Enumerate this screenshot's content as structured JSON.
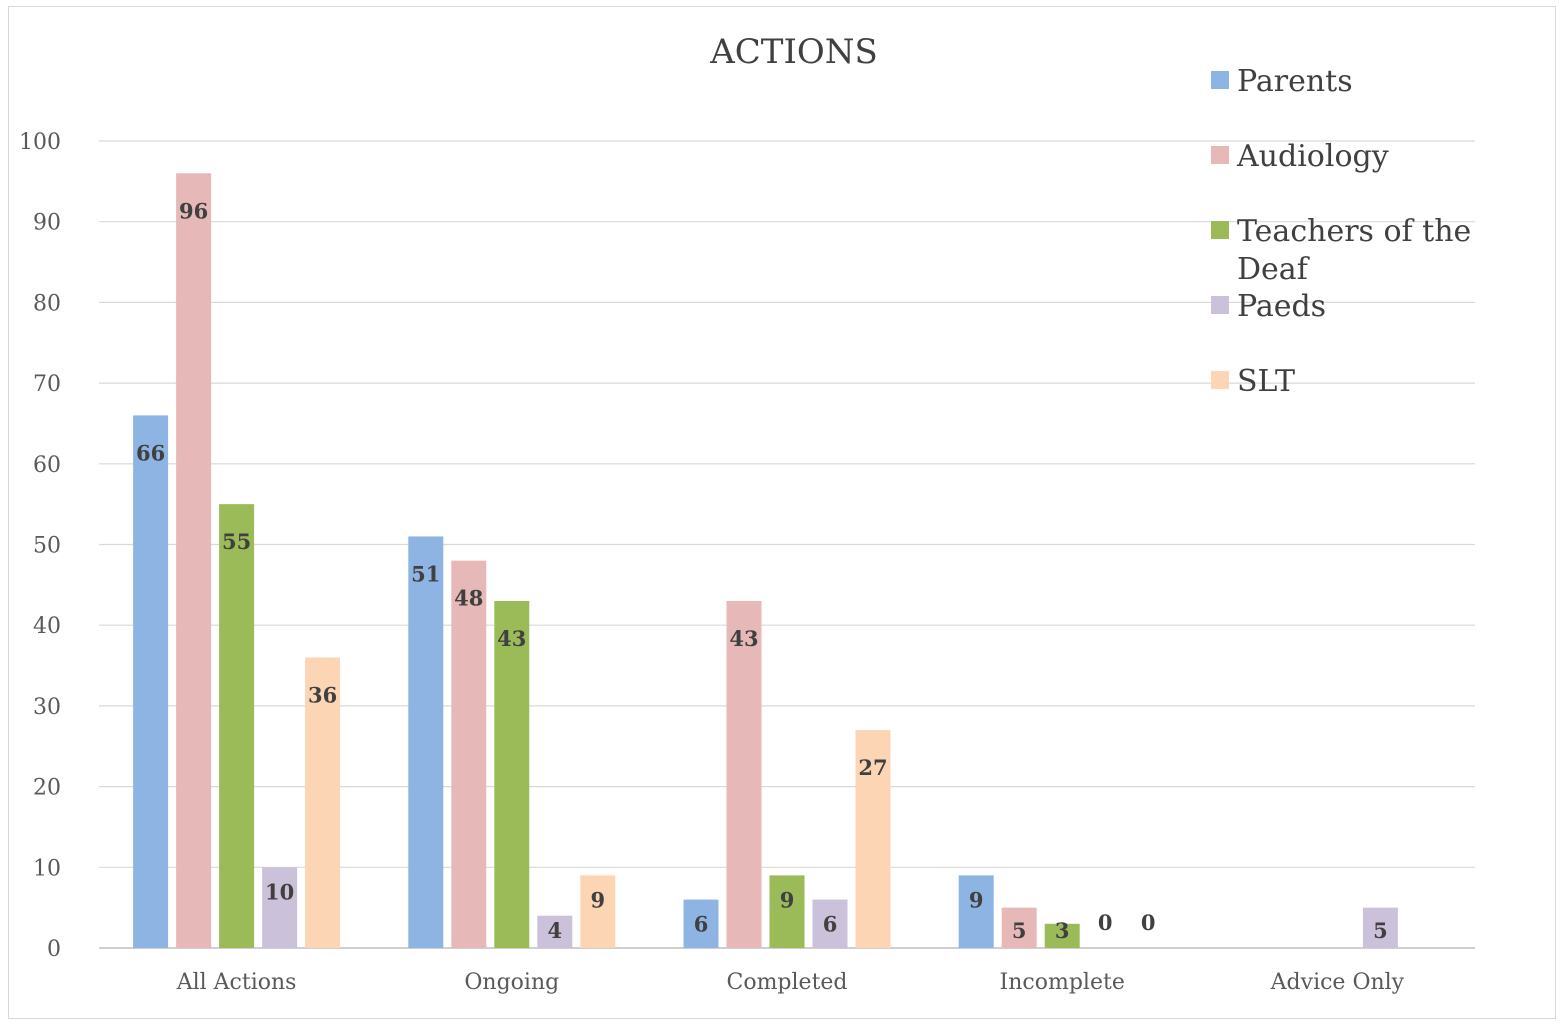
{
  "chart_data": {
    "type": "bar",
    "title": "ACTIONS",
    "xlabel": "",
    "ylabel": "",
    "ylim": [
      0,
      100
    ],
    "yticks": [
      0,
      10,
      20,
      30,
      40,
      50,
      60,
      70,
      80,
      90,
      100
    ],
    "grid": true,
    "legend_position": "right",
    "categories": [
      "All Actions",
      "Ongoing",
      "Completed",
      "Incomplete",
      "Advice Only"
    ],
    "series": [
      {
        "name": "Parents",
        "color": "#8eb4e3",
        "values": [
          66,
          51,
          6,
          9,
          null
        ],
        "labels": [
          "66",
          "51",
          "6",
          "9",
          ""
        ]
      },
      {
        "name": "Audiology",
        "color": "#e6b9b8",
        "values": [
          96,
          48,
          43,
          5,
          null
        ],
        "labels": [
          "96",
          "48",
          "43",
          "5",
          ""
        ]
      },
      {
        "name": "Teachers of the Deaf",
        "legend_lines": [
          "Teachers of the",
          "Deaf"
        ],
        "color": "#9bbb59",
        "values": [
          55,
          43,
          9,
          3,
          null
        ],
        "labels": [
          "55",
          "43",
          "9",
          "3",
          ""
        ]
      },
      {
        "name": "Paeds",
        "color": "#ccc1da",
        "values": [
          10,
          4,
          6,
          0,
          5
        ],
        "labels": [
          "10",
          "4",
          "6",
          "0",
          "5"
        ]
      },
      {
        "name": "SLT",
        "color": "#fcd5b5",
        "values": [
          36,
          9,
          27,
          0,
          null
        ],
        "labels": [
          "36",
          "9",
          "27",
          "0",
          ""
        ]
      }
    ]
  }
}
